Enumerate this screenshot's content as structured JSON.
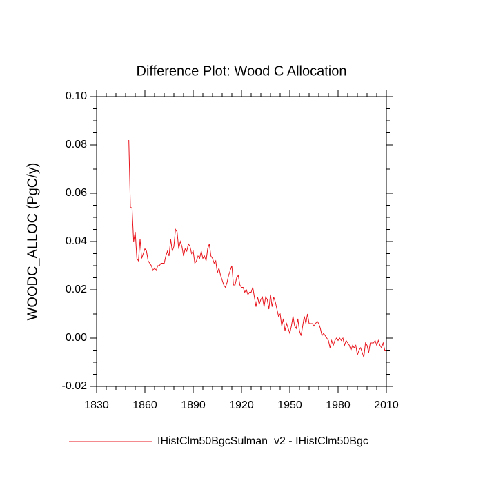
{
  "chart_data": {
    "type": "line",
    "title": "Difference Plot: Wood C Allocation",
    "y_label": "WOODC_ALLOC  (PgC/y)",
    "x": [
      1850,
      1851,
      1852,
      1853,
      1854,
      1855,
      1856,
      1857,
      1858,
      1859,
      1860,
      1861,
      1862,
      1863,
      1864,
      1865,
      1866,
      1867,
      1868,
      1869,
      1870,
      1871,
      1872,
      1873,
      1874,
      1875,
      1876,
      1877,
      1878,
      1879,
      1880,
      1881,
      1882,
      1883,
      1884,
      1885,
      1886,
      1887,
      1888,
      1889,
      1890,
      1891,
      1892,
      1893,
      1894,
      1895,
      1896,
      1897,
      1898,
      1899,
      1900,
      1901,
      1902,
      1903,
      1904,
      1905,
      1906,
      1907,
      1908,
      1909,
      1910,
      1911,
      1912,
      1913,
      1914,
      1915,
      1916,
      1917,
      1918,
      1919,
      1920,
      1921,
      1922,
      1923,
      1924,
      1925,
      1926,
      1927,
      1928,
      1929,
      1930,
      1931,
      1932,
      1933,
      1934,
      1935,
      1936,
      1937,
      1938,
      1939,
      1940,
      1941,
      1942,
      1943,
      1944,
      1945,
      1946,
      1947,
      1948,
      1949,
      1950,
      1951,
      1952,
      1953,
      1954,
      1955,
      1956,
      1957,
      1958,
      1959,
      1960,
      1961,
      1962,
      1963,
      1964,
      1965,
      1966,
      1967,
      1968,
      1969,
      1970,
      1971,
      1972,
      1973,
      1974,
      1975,
      1976,
      1977,
      1978,
      1979,
      1980,
      1981,
      1982,
      1983,
      1984,
      1985,
      1986,
      1987,
      1988,
      1989,
      1990,
      1991,
      1992,
      1993,
      1994,
      1995,
      1996,
      1997,
      1998,
      1999,
      2000,
      2001,
      2002,
      2003,
      2004,
      2005,
      2006,
      2007,
      2008,
      2009,
      2010
    ],
    "series": [
      {
        "name": "IHistClm50BgcSulman_v2 - IHistClm50Bgc",
        "color": "#e8141c",
        "values": [
          0.082,
          0.054,
          0.054,
          0.04,
          0.044,
          0.033,
          0.032,
          0.041,
          0.033,
          0.035,
          0.037,
          0.036,
          0.032,
          0.031,
          0.03,
          0.028,
          0.029,
          0.028,
          0.03,
          0.03,
          0.031,
          0.031,
          0.031,
          0.034,
          0.036,
          0.034,
          0.041,
          0.036,
          0.038,
          0.045,
          0.044,
          0.037,
          0.04,
          0.038,
          0.034,
          0.037,
          0.036,
          0.039,
          0.038,
          0.035,
          0.036,
          0.031,
          0.032,
          0.034,
          0.033,
          0.036,
          0.033,
          0.034,
          0.032,
          0.037,
          0.039,
          0.034,
          0.033,
          0.031,
          0.032,
          0.027,
          0.029,
          0.026,
          0.024,
          0.022,
          0.021,
          0.023,
          0.026,
          0.028,
          0.03,
          0.022,
          0.022,
          0.025,
          0.026,
          0.022,
          0.021,
          0.021,
          0.019,
          0.02,
          0.018,
          0.019,
          0.019,
          0.021,
          0.017,
          0.013,
          0.017,
          0.014,
          0.016,
          0.017,
          0.013,
          0.017,
          0.016,
          0.012,
          0.018,
          0.013,
          0.017,
          0.015,
          0.012,
          0.009,
          0.01,
          0.005,
          0.008,
          0.003,
          0.006,
          0.004,
          0.002,
          0.005,
          0.009,
          0.005,
          0.004,
          0.008,
          0.003,
          0.001,
          0.005,
          0.009,
          0.006,
          0.01,
          0.006,
          0.006,
          0.006,
          0.005,
          0.006,
          0.007,
          0.006,
          0.004,
          0.001,
          0.002,
          0.001,
          0.0,
          -0.001,
          -0.004,
          -0.001,
          -0.003,
          -0.001,
          0.0,
          -0.001,
          0.0,
          -0.001,
          0.0,
          -0.003,
          -0.001,
          -0.002,
          -0.003,
          -0.005,
          -0.003,
          -0.004,
          -0.003,
          -0.007,
          -0.005,
          -0.004,
          -0.006,
          -0.008,
          -0.002,
          -0.003,
          -0.006,
          -0.002,
          -0.002,
          -0.002,
          -0.001,
          -0.003,
          -0.001,
          -0.003,
          -0.004,
          -0.002,
          -0.005,
          -0.005
        ]
      }
    ],
    "xlim": [
      1830,
      2010
    ],
    "xticks": [
      1830,
      1860,
      1890,
      1920,
      1950,
      1980,
      2010
    ],
    "ylim": [
      -0.02,
      0.1
    ],
    "yticks": [
      -0.02,
      {
        "value": 0,
        "label": "0.00"
      },
      0.02,
      0.04,
      0.06,
      0.08,
      {
        "value": 0.1,
        "label": "0.10"
      }
    ]
  }
}
